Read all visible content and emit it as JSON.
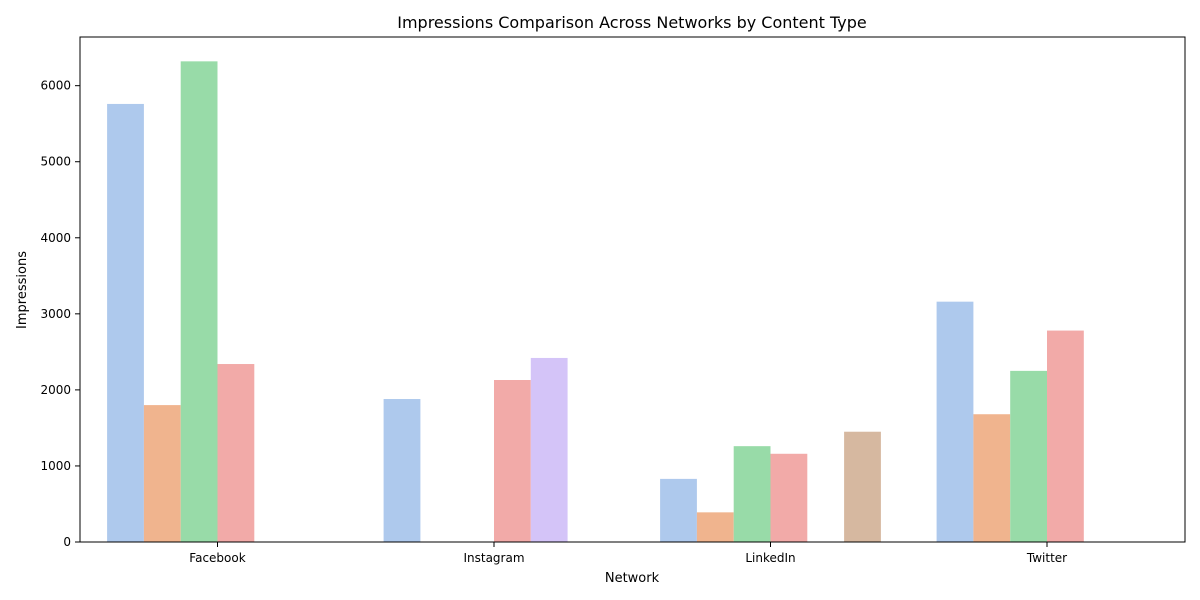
{
  "chart_data": {
    "type": "bar",
    "title": "Impressions Comparison Across Networks by Content Type",
    "xlabel": "Network",
    "ylabel": "Impressions",
    "categories": [
      "Facebook",
      "Instagram",
      "LinkedIn",
      "Twitter"
    ],
    "ylim": [
      0,
      6640
    ],
    "yticks": [
      0,
      1000,
      2000,
      3000,
      4000,
      5000,
      6000
    ],
    "ytick_labels": [
      "0",
      "1000",
      "2000",
      "3000",
      "4000",
      "5000",
      "6000"
    ],
    "grid": false,
    "legend": "none",
    "series": [
      {
        "color": "#aec9ed",
        "values": [
          5760,
          1880,
          830,
          3160
        ]
      },
      {
        "color": "#f0b48e",
        "values": [
          1800,
          null,
          390,
          1680
        ]
      },
      {
        "color": "#98dba8",
        "values": [
          6320,
          null,
          1260,
          2250
        ]
      },
      {
        "color": "#f2aaa8",
        "values": [
          2340,
          2130,
          1160,
          2780
        ]
      },
      {
        "color": "#d4c4f8",
        "values": [
          null,
          2420,
          null,
          null
        ]
      },
      {
        "color": "#d6b8a0",
        "values": [
          null,
          null,
          1450,
          null
        ]
      }
    ]
  }
}
